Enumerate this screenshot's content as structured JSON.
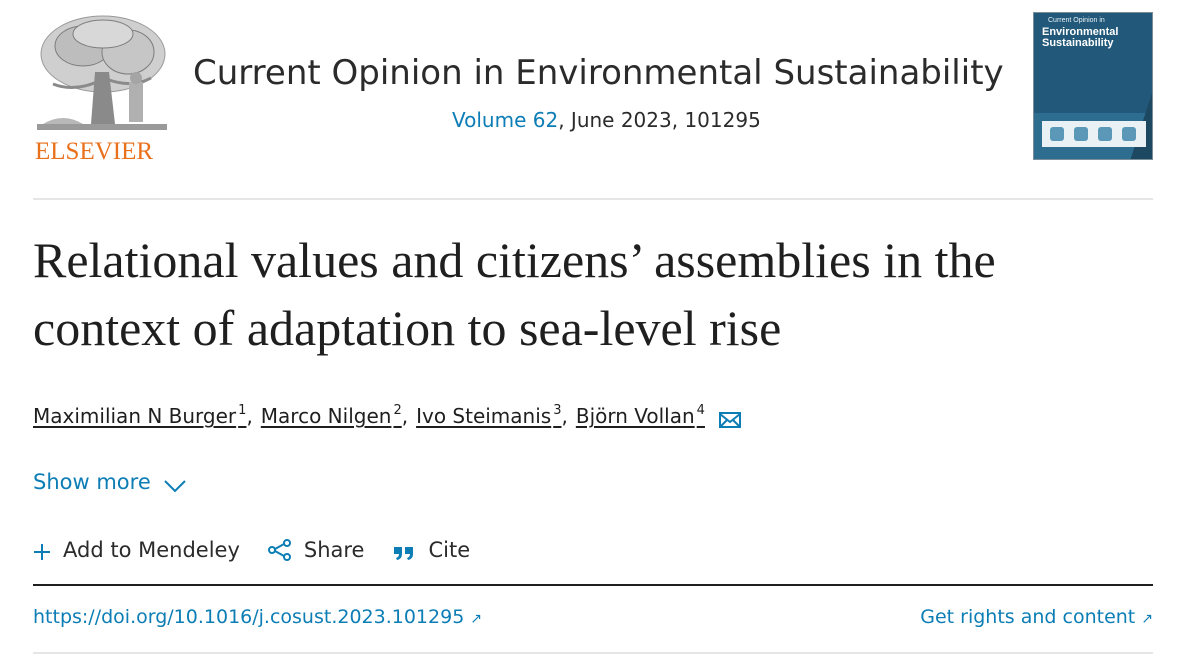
{
  "header": {
    "publisher_logo_text": "ELSEVIER",
    "journal_title": "Current Opinion in Environmental Sustainability",
    "volume_link": "Volume 62",
    "issue_info": ", June 2023, 101295",
    "cover": {
      "line1": "Current Opinion in",
      "line2": "Environmental Sustainability"
    }
  },
  "article": {
    "title": "Relational values and citizens’ assemblies in the context of adaptation to sea-level rise",
    "authors": [
      {
        "name": "Maximilian N Burger",
        "aff": "1"
      },
      {
        "name": "Marco Nilgen",
        "aff": "2"
      },
      {
        "name": "Ivo Steimanis",
        "aff": "3"
      },
      {
        "name": "Björn Vollan",
        "aff": "4"
      }
    ],
    "author_separator": ","
  },
  "show_more": {
    "label": "Show more"
  },
  "actions": {
    "mendeley": "Add to Mendeley",
    "share": "Share",
    "cite": "Cite"
  },
  "links": {
    "doi": "https://doi.org/10.1016/j.cosust.2023.101295",
    "rights": "Get rights and content",
    "arrow": "↗"
  },
  "colors": {
    "link": "#0c7db5",
    "elsevier_orange": "#e9711c",
    "text": "#1f1f1f"
  }
}
